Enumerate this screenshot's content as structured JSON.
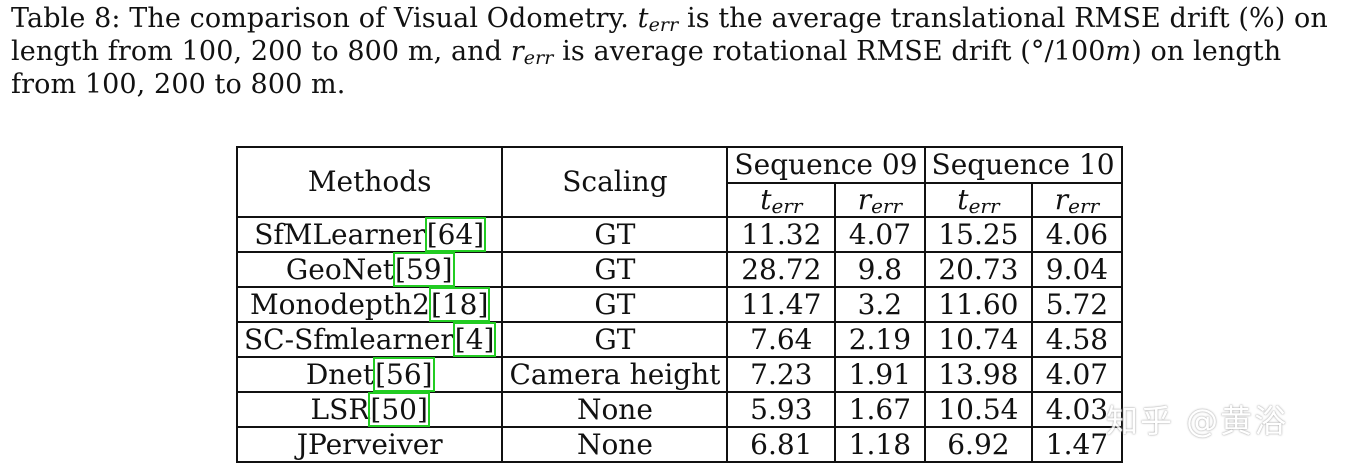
{
  "caption": {
    "label": "Table 8:",
    "part1": "The comparison of Visual Odometry.",
    "t_sym": "t",
    "err_sub": "err",
    "part2": "is the average translational RMSE drift (%) on length from 100, 200 to 800 m, and",
    "r_sym": "r",
    "part3": "is average rotational RMSE drift (°/100",
    "m_sym": "m",
    "part4": ") on length from 100, 200 to 800 m."
  },
  "table": {
    "header": {
      "methods": "Methods",
      "scaling": "Scaling",
      "seq09": "Sequence 09",
      "seq10": "Sequence 10",
      "t": "t",
      "r": "r",
      "sub": "err"
    },
    "rows": [
      {
        "method": "SfMLearner",
        "ref": "[64]",
        "scaling": "GT",
        "t09": "11.32",
        "r09": "4.07",
        "t10": "15.25",
        "r10": "4.06"
      },
      {
        "method": "GeoNet",
        "ref": "[59]",
        "scaling": "GT",
        "t09": "28.72",
        "r09": "9.8",
        "t10": "20.73",
        "r10": "9.04"
      },
      {
        "method": "Monodepth2",
        "ref": "[18]",
        "scaling": "GT",
        "t09": "11.47",
        "r09": "3.2",
        "t10": "11.60",
        "r10": "5.72"
      },
      {
        "method": "SC-Sfmlearner",
        "ref": "[4]",
        "scaling": "GT",
        "t09": "7.64",
        "r09": "2.19",
        "t10": "10.74",
        "r10": "4.58"
      },
      {
        "method": "Dnet",
        "ref": "[56]",
        "scaling": "Camera height",
        "t09": "7.23",
        "r09": "1.91",
        "t10": "13.98",
        "r10": "4.07"
      },
      {
        "method": "LSR",
        "ref": "[50]",
        "scaling": "None",
        "t09": "5.93",
        "r09": "1.67",
        "t10": "10.54",
        "r10": "4.03"
      },
      {
        "method": "JPerveiver",
        "ref": "",
        "scaling": "None",
        "t09": "6.81",
        "r09": "1.18",
        "t10": "6.92",
        "r10": "1.47"
      }
    ]
  },
  "watermark": "知乎 @黄浴"
}
